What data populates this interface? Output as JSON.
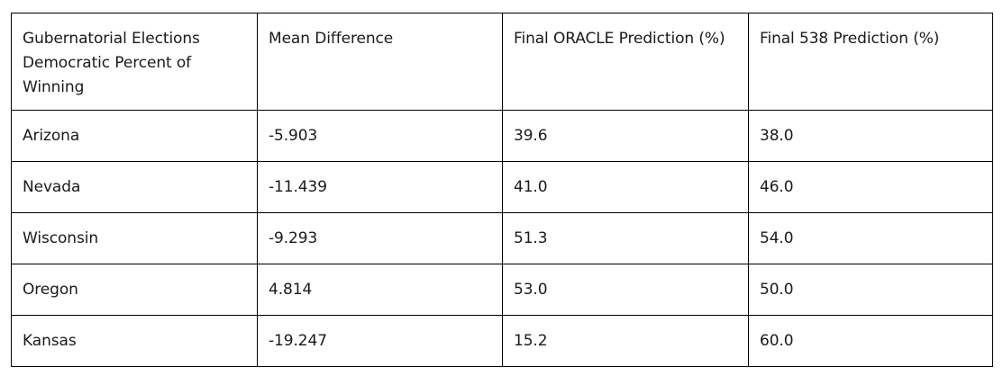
{
  "table": {
    "headers": [
      "Gubernatorial Elections Democratic Percent of Winning",
      "Mean Difference",
      "Final ORACLE Prediction (%)",
      "Final 538 Prediction (%)"
    ],
    "rows": [
      [
        "Arizona",
        "-5.903",
        "39.6",
        "38.0"
      ],
      [
        "Nevada",
        "-11.439",
        "41.0",
        "46.0"
      ],
      [
        "Wisconsin",
        "-9.293",
        "51.3",
        "54.0"
      ],
      [
        "Oregon",
        "4.814",
        "53.0",
        "50.0"
      ],
      [
        "Kansas",
        "-19.247",
        "15.2",
        "60.0"
      ]
    ]
  }
}
